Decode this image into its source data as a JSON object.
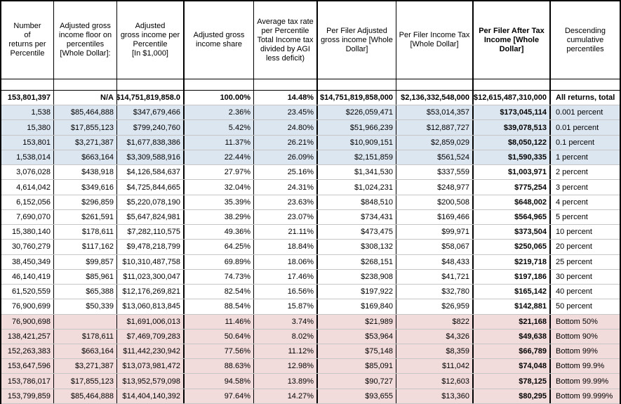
{
  "colors": {
    "row_highlight_blue": "#dce6f1",
    "row_highlight_pink": "#f2dcdb",
    "gridline": "#c6c6c6",
    "table_border": "#000000"
  },
  "table": {
    "columns": [
      {
        "label": "Number\nof\nreturns per\nPercentile",
        "bold": false
      },
      {
        "label": "Adjusted gross\nincome floor on\npercentiles\n[Whole Dollar]:",
        "bold": false
      },
      {
        "label": "Adjusted\ngross income per\nPercentile\n[In $1,000]",
        "bold": false
      },
      {
        "label": "Adjusted gross\nincome share",
        "bold": false
      },
      {
        "label": "Average tax rate\nper Percentile\nTotal Income tax\ndivided by AGI\nless deficit)",
        "bold": false
      },
      {
        "label": "Per Filer Adjusted\ngross income [Whole\nDollar]",
        "bold": false
      },
      {
        "label": "Per Filer Income Tax\n[Whole Dollar]",
        "bold": false
      },
      {
        "label": "Per Filer After Tax\nIncome [Whole\nDollar]",
        "bold": true
      },
      {
        "label": "Descending\ncumulative\npercentiles",
        "bold": false
      }
    ],
    "rows": [
      {
        "tone": "total",
        "bold": true,
        "cells": [
          "153,801,397",
          "N/A",
          "$14,751,819,858.0",
          "100.00%",
          "14.48%",
          "$14,751,819,858,000",
          "$2,136,332,548,000",
          "$12,615,487,310,000",
          "All returns, total"
        ]
      },
      {
        "tone": "blue",
        "bold": false,
        "cells": [
          "1,538",
          "$85,464,888",
          "$347,679,466",
          "2.36%",
          "23.45%",
          "$226,059,471",
          "$53,014,357",
          "$173,045,114",
          "0.001 percent"
        ]
      },
      {
        "tone": "blue",
        "bold": false,
        "cells": [
          "15,380",
          "$17,855,123",
          "$799,240,760",
          "5.42%",
          "24.80%",
          "$51,966,239",
          "$12,887,727",
          "$39,078,513",
          "0.01 percent"
        ]
      },
      {
        "tone": "blue",
        "bold": false,
        "cells": [
          "153,801",
          "$3,271,387",
          "$1,677,838,386",
          "11.37%",
          "26.21%",
          "$10,909,151",
          "$2,859,029",
          "$8,050,122",
          "0.1 percent"
        ]
      },
      {
        "tone": "blue",
        "bold": false,
        "cells": [
          "1,538,014",
          "$663,164",
          "$3,309,588,916",
          "22.44%",
          "26.09%",
          "$2,151,859",
          "$561,524",
          "$1,590,335",
          "1 percent"
        ]
      },
      {
        "tone": "white",
        "bold": false,
        "cells": [
          "3,076,028",
          "$438,918",
          "$4,126,584,637",
          "27.97%",
          "25.16%",
          "$1,341,530",
          "$337,559",
          "$1,003,971",
          "2 percent"
        ]
      },
      {
        "tone": "white",
        "bold": false,
        "cells": [
          "4,614,042",
          "$349,616",
          "$4,725,844,665",
          "32.04%",
          "24.31%",
          "$1,024,231",
          "$248,977",
          "$775,254",
          "3 percent"
        ]
      },
      {
        "tone": "white",
        "bold": false,
        "cells": [
          "6,152,056",
          "$296,859",
          "$5,220,078,190",
          "35.39%",
          "23.63%",
          "$848,510",
          "$200,508",
          "$648,002",
          "4 percent"
        ]
      },
      {
        "tone": "white",
        "bold": false,
        "cells": [
          "7,690,070",
          "$261,591",
          "$5,647,824,981",
          "38.29%",
          "23.07%",
          "$734,431",
          "$169,466",
          "$564,965",
          "5 percent"
        ]
      },
      {
        "tone": "white",
        "bold": false,
        "cells": [
          "15,380,140",
          "$178,611",
          "$7,282,110,575",
          "49.36%",
          "21.11%",
          "$473,475",
          "$99,971",
          "$373,504",
          "10 percent"
        ]
      },
      {
        "tone": "white",
        "bold": false,
        "cells": [
          "30,760,279",
          "$117,162",
          "$9,478,218,799",
          "64.25%",
          "18.84%",
          "$308,132",
          "$58,067",
          "$250,065",
          "20 percent"
        ]
      },
      {
        "tone": "white",
        "bold": false,
        "cells": [
          "38,450,349",
          "$99,857",
          "$10,310,487,758",
          "69.89%",
          "18.06%",
          "$268,151",
          "$48,433",
          "$219,718",
          "25 percent"
        ]
      },
      {
        "tone": "white",
        "bold": false,
        "cells": [
          "46,140,419",
          "$85,961",
          "$11,023,300,047",
          "74.73%",
          "17.46%",
          "$238,908",
          "$41,721",
          "$197,186",
          "30 percent"
        ]
      },
      {
        "tone": "white",
        "bold": false,
        "cells": [
          "61,520,559",
          "$65,388",
          "$12,176,269,821",
          "82.54%",
          "16.56%",
          "$197,922",
          "$32,780",
          "$165,142",
          "40 percent"
        ]
      },
      {
        "tone": "white",
        "bold": false,
        "cells": [
          "76,900,699",
          "$50,339",
          "$13,060,813,845",
          "88.54%",
          "15.87%",
          "$169,840",
          "$26,959",
          "$142,881",
          "50 percent"
        ]
      },
      {
        "tone": "pink",
        "bold": false,
        "cells": [
          "76,900,698",
          "",
          "$1,691,006,013",
          "11.46%",
          "3.74%",
          "$21,989",
          "$822",
          "$21,168",
          "Bottom 50%"
        ]
      },
      {
        "tone": "pink",
        "bold": false,
        "cells": [
          "138,421,257",
          "$178,611",
          "$7,469,709,283",
          "50.64%",
          "8.02%",
          "$53,964",
          "$4,326",
          "$49,638",
          "Bottom 90%"
        ]
      },
      {
        "tone": "pink",
        "bold": false,
        "cells": [
          "152,263,383",
          "$663,164",
          "$11,442,230,942",
          "77.56%",
          "11.12%",
          "$75,148",
          "$8,359",
          "$66,789",
          "Bottom 99%"
        ]
      },
      {
        "tone": "pink",
        "bold": false,
        "cells": [
          "153,647,596",
          "$3,271,387",
          "$13,073,981,472",
          "88.63%",
          "12.98%",
          "$85,091",
          "$11,042",
          "$74,048",
          "Bottom 99.9%"
        ]
      },
      {
        "tone": "pink",
        "bold": false,
        "cells": [
          "153,786,017",
          "$17,855,123",
          "$13,952,579,098",
          "94.58%",
          "13.89%",
          "$90,727",
          "$12,603",
          "$78,125",
          "Bottom 99.99%"
        ]
      },
      {
        "tone": "pink",
        "bold": false,
        "cells": [
          "153,799,859",
          "$85,464,888",
          "$14,404,140,392",
          "97.64%",
          "14.27%",
          "$93,655",
          "$13,360",
          "$80,295",
          "Bottom 99.999%"
        ]
      }
    ]
  }
}
